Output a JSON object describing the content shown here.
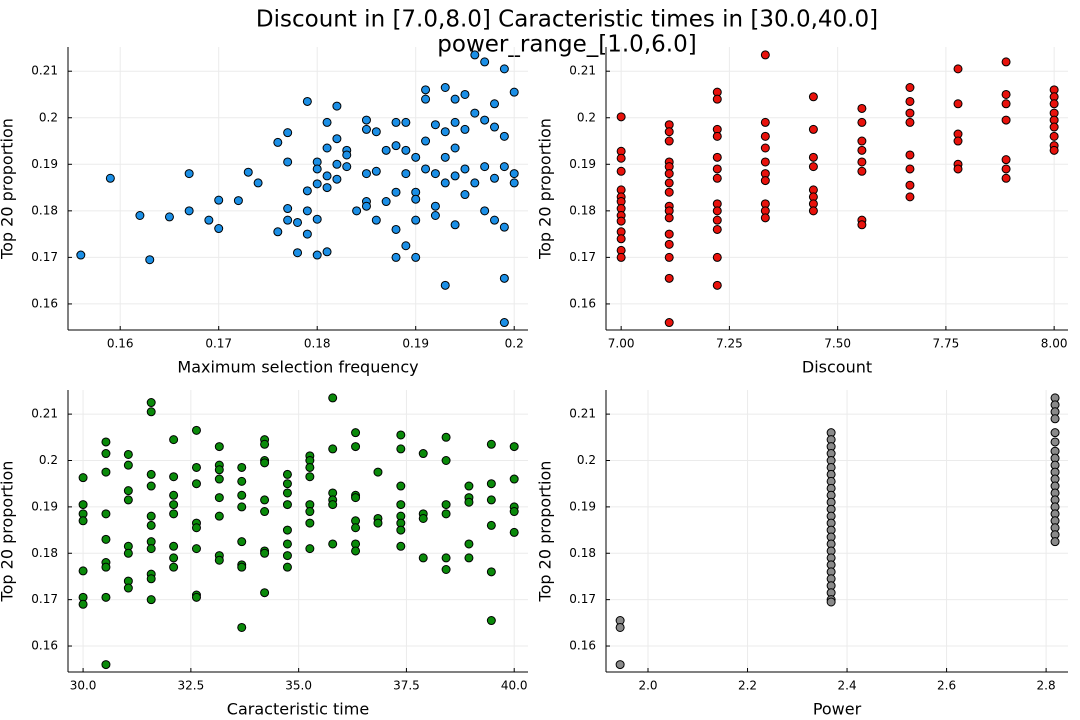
{
  "title": "Discount in [7.0,8.0] Caracteristic times in [30.0,40.0]",
  "subtitle": "power_range_[1.0,6.0]",
  "chart_data": [
    {
      "type": "scatter",
      "xlabel": "Maximum selection frequency",
      "ylabel": "Top 20 proportion",
      "color": "#1b8fe6",
      "grid": true,
      "xlim": [
        0.1547,
        0.2014
      ],
      "ylim": [
        0.1544,
        0.2152
      ],
      "xticks": [
        0.16,
        0.17,
        0.18,
        0.19,
        0.2
      ],
      "yticks": [
        0.16,
        0.17,
        0.18,
        0.19,
        0.2,
        0.21
      ],
      "x": [
        0.156,
        0.159,
        0.162,
        0.163,
        0.165,
        0.167,
        0.167,
        0.169,
        0.17,
        0.17,
        0.172,
        0.173,
        0.174,
        0.176,
        0.176,
        0.177,
        0.177,
        0.177,
        0.177,
        0.178,
        0.178,
        0.179,
        0.179,
        0.179,
        0.179,
        0.18,
        0.18,
        0.18,
        0.18,
        0.18,
        0.181,
        0.181,
        0.181,
        0.181,
        0.181,
        0.182,
        0.182,
        0.182,
        0.182,
        0.183,
        0.183,
        0.183,
        0.184,
        0.185,
        0.185,
        0.185,
        0.185,
        0.185,
        0.186,
        0.186,
        0.186,
        0.187,
        0.187,
        0.188,
        0.188,
        0.188,
        0.188,
        0.188,
        0.189,
        0.189,
        0.189,
        0.189,
        0.19,
        0.19,
        0.19,
        0.19,
        0.19,
        0.191,
        0.191,
        0.191,
        0.191,
        0.192,
        0.192,
        0.192,
        0.192,
        0.193,
        0.193,
        0.193,
        0.193,
        0.193,
        0.194,
        0.194,
        0.194,
        0.194,
        0.194,
        0.195,
        0.195,
        0.195,
        0.195,
        0.196,
        0.196,
        0.196,
        0.197,
        0.197,
        0.197,
        0.197,
        0.198,
        0.198,
        0.198,
        0.198,
        0.199,
        0.199,
        0.199,
        0.199,
        0.199,
        0.199,
        0.2,
        0.2,
        0.2
      ],
      "y": [
        0.1705,
        0.187,
        0.179,
        0.1695,
        0.1787,
        0.18,
        0.188,
        0.178,
        0.1823,
        0.1762,
        0.1822,
        0.1883,
        0.186,
        0.1947,
        0.1755,
        0.1968,
        0.1905,
        0.1805,
        0.178,
        0.171,
        0.1775,
        0.2035,
        0.1843,
        0.18,
        0.175,
        0.1905,
        0.189,
        0.1858,
        0.1782,
        0.1705,
        0.199,
        0.1935,
        0.1875,
        0.185,
        0.1712,
        0.2025,
        0.1955,
        0.19,
        0.1868,
        0.193,
        0.192,
        0.1895,
        0.18,
        0.1995,
        0.1975,
        0.188,
        0.182,
        0.181,
        0.197,
        0.1885,
        0.178,
        0.193,
        0.182,
        0.199,
        0.194,
        0.184,
        0.176,
        0.17,
        0.199,
        0.193,
        0.188,
        0.1725,
        0.1915,
        0.184,
        0.1825,
        0.178,
        0.17,
        0.206,
        0.204,
        0.195,
        0.189,
        0.1985,
        0.188,
        0.181,
        0.179,
        0.2065,
        0.197,
        0.1915,
        0.186,
        0.164,
        0.204,
        0.199,
        0.1935,
        0.1875,
        0.177,
        0.205,
        0.1975,
        0.189,
        0.1835,
        0.2135,
        0.201,
        0.186,
        0.212,
        0.1995,
        0.1895,
        0.18,
        0.203,
        0.198,
        0.187,
        0.178,
        0.2105,
        0.196,
        0.1895,
        0.1765,
        0.1655,
        0.156,
        0.2055,
        0.188,
        0.186
      ]
    },
    {
      "type": "scatter",
      "xlabel": "Discount",
      "ylabel": "Top 20 proportion",
      "color": "#e8120c",
      "grid": true,
      "xlim": [
        6.965,
        8.032
      ],
      "ylim": [
        0.1544,
        0.2152
      ],
      "xticks": [
        {
          "value": 7,
          "label": "7.00"
        },
        7.25,
        {
          "value": 7.5,
          "label": "7.50"
        },
        7.75,
        {
          "value": 8,
          "label": "8.00"
        }
      ],
      "yticks": [
        0.16,
        0.17,
        0.18,
        0.19,
        0.2,
        0.21
      ],
      "x": [
        7,
        7,
        7,
        7,
        7,
        7,
        7,
        7,
        7,
        7,
        7,
        7,
        7,
        7,
        7.111,
        7.111,
        7.111,
        7.111,
        7.111,
        7.111,
        7.111,
        7.111,
        7.111,
        7.111,
        7.111,
        7.111,
        7.111,
        7.111,
        7.111,
        7.111,
        7.222,
        7.222,
        7.222,
        7.222,
        7.222,
        7.222,
        7.222,
        7.222,
        7.222,
        7.222,
        7.222,
        7.222,
        7.222,
        7.333,
        7.333,
        7.333,
        7.333,
        7.333,
        7.333,
        7.333,
        7.333,
        7.333,
        7.333,
        7.444,
        7.444,
        7.444,
        7.444,
        7.444,
        7.444,
        7.444,
        7.444,
        7.556,
        7.556,
        7.556,
        7.556,
        7.556,
        7.556,
        7.556,
        7.556,
        7.667,
        7.667,
        7.667,
        7.667,
        7.667,
        7.667,
        7.667,
        7.667,
        7.778,
        7.778,
        7.778,
        7.778,
        7.778,
        7.778,
        7.889,
        7.889,
        7.889,
        7.889,
        7.889,
        7.889,
        7.889,
        8,
        8,
        8,
        8,
        8,
        8,
        8,
        8,
        8
      ],
      "y": [
        0.2002,
        0.1928,
        0.1913,
        0.1885,
        0.1845,
        0.183,
        0.182,
        0.1805,
        0.179,
        0.1778,
        0.1755,
        0.174,
        0.1715,
        0.17,
        0.1985,
        0.197,
        0.195,
        0.1905,
        0.1895,
        0.188,
        0.186,
        0.184,
        0.181,
        0.18,
        0.1785,
        0.175,
        0.1728,
        0.17,
        0.1655,
        0.156,
        0.2055,
        0.204,
        0.1975,
        0.196,
        0.1915,
        0.189,
        0.187,
        0.1815,
        0.18,
        0.178,
        0.176,
        0.17,
        0.164,
        0.2135,
        0.199,
        0.196,
        0.1935,
        0.1905,
        0.188,
        0.1865,
        0.1815,
        0.18,
        0.1785,
        0.2045,
        0.1975,
        0.1915,
        0.1895,
        0.1845,
        0.183,
        0.1815,
        0.18,
        0.202,
        0.199,
        0.195,
        0.193,
        0.1905,
        0.1885,
        0.178,
        0.177,
        0.2065,
        0.2035,
        0.201,
        0.199,
        0.192,
        0.189,
        0.1855,
        0.183,
        0.2105,
        0.203,
        0.1965,
        0.195,
        0.19,
        0.189,
        0.212,
        0.205,
        0.203,
        0.1995,
        0.191,
        0.189,
        0.187,
        0.206,
        0.2045,
        0.203,
        0.201,
        0.1995,
        0.198,
        0.196,
        0.194,
        0.193
      ]
    },
    {
      "type": "scatter",
      "xlabel": "Caracteristic time",
      "ylabel": "Top 20 proportion",
      "color": "#0a8a0a",
      "grid": true,
      "xlim": [
        29.65,
        40.32
      ],
      "ylim": [
        0.1544,
        0.2152
      ],
      "xticks": [
        {
          "value": 30,
          "label": "30.0"
        },
        32.5,
        {
          "value": 35,
          "label": "35.0"
        },
        37.5,
        {
          "value": 40,
          "label": "40.0"
        }
      ],
      "yticks": [
        0.16,
        0.17,
        0.18,
        0.19,
        0.2,
        0.21
      ],
      "x": [
        30,
        30,
        30,
        30,
        30,
        30,
        30,
        30.53,
        30.53,
        30.53,
        30.53,
        30.53,
        30.53,
        30.53,
        30.53,
        30.53,
        31.05,
        31.05,
        31.05,
        31.05,
        31.05,
        31.05,
        31.05,
        31.05,
        31.58,
        31.58,
        31.58,
        31.58,
        31.58,
        31.58,
        31.58,
        31.58,
        31.58,
        31.58,
        31.58,
        32.1,
        32.1,
        32.1,
        32.1,
        32.1,
        32.1,
        32.1,
        32.1,
        32.63,
        32.63,
        32.63,
        32.63,
        32.63,
        32.63,
        32.63,
        32.63,
        33.16,
        33.16,
        33.16,
        33.16,
        33.16,
        33.16,
        33.16,
        33.16,
        33.68,
        33.68,
        33.68,
        33.68,
        33.68,
        33.68,
        33.68,
        33.68,
        34.21,
        34.21,
        34.21,
        34.21,
        34.21,
        34.21,
        34.21,
        34.21,
        34.21,
        34.74,
        34.74,
        34.74,
        34.74,
        34.74,
        34.74,
        34.74,
        34.74,
        35.26,
        35.26,
        35.26,
        35.26,
        35.26,
        35.26,
        35.26,
        35.26,
        35.79,
        35.79,
        35.79,
        35.79,
        35.79,
        35.79,
        36.32,
        36.32,
        36.32,
        36.32,
        36.32,
        36.32,
        36.32,
        36.32,
        36.84,
        36.84,
        36.84,
        37.37,
        37.37,
        37.37,
        37.37,
        37.37,
        37.37,
        37.37,
        37.37,
        37.89,
        37.89,
        37.89,
        37.89,
        38.42,
        38.42,
        38.42,
        38.42,
        38.42,
        38.42,
        38.95,
        38.95,
        38.95,
        38.95,
        38.95,
        39.47,
        39.47,
        39.47,
        39.47,
        39.47,
        39.47,
        40,
        40,
        40,
        40,
        40
      ],
      "y": [
        0.1963,
        0.1905,
        0.1885,
        0.187,
        0.1762,
        0.1705,
        0.169,
        0.204,
        0.2015,
        0.1975,
        0.1885,
        0.183,
        0.178,
        0.177,
        0.1705,
        0.156,
        0.2013,
        0.199,
        0.1935,
        0.1915,
        0.1815,
        0.18,
        0.174,
        0.1725,
        0.2125,
        0.2105,
        0.197,
        0.1945,
        0.188,
        0.186,
        0.1825,
        0.181,
        0.1755,
        0.1745,
        0.17,
        0.2045,
        0.1965,
        0.1925,
        0.1905,
        0.1885,
        0.1815,
        0.179,
        0.177,
        0.2065,
        0.1985,
        0.195,
        0.1865,
        0.1855,
        0.181,
        0.171,
        0.1705,
        0.203,
        0.199,
        0.198,
        0.196,
        0.192,
        0.188,
        0.1795,
        0.1785,
        0.1985,
        0.1955,
        0.1925,
        0.19,
        0.1825,
        0.1775,
        0.177,
        0.164,
        0.2045,
        0.2035,
        0.2,
        0.1995,
        0.1915,
        0.189,
        0.1805,
        0.18,
        0.1715,
        0.197,
        0.195,
        0.193,
        0.1905,
        0.185,
        0.182,
        0.1795,
        0.177,
        0.201,
        0.2,
        0.1985,
        0.1965,
        0.1905,
        0.189,
        0.1865,
        0.181,
        0.2135,
        0.2025,
        0.193,
        0.1915,
        0.1905,
        0.182,
        0.206,
        0.203,
        0.1925,
        0.192,
        0.187,
        0.1855,
        0.182,
        0.1805,
        0.1975,
        0.1875,
        0.1865,
        0.2055,
        0.2025,
        0.1945,
        0.1905,
        0.188,
        0.1865,
        0.185,
        0.1815,
        0.2015,
        0.1885,
        0.1875,
        0.179,
        0.205,
        0.2,
        0.1905,
        0.1885,
        0.179,
        0.1765,
        0.1945,
        0.192,
        0.191,
        0.182,
        0.179,
        0.2035,
        0.195,
        0.1915,
        0.186,
        0.176,
        0.1655,
        0.203,
        0.196,
        0.19,
        0.189,
        0.1845
      ]
    },
    {
      "type": "scatter",
      "xlabel": "Power",
      "ylabel": "Top 20 proportion",
      "color": "#8a8a8a",
      "grid": true,
      "xlim": [
        1.9156,
        2.844
      ],
      "ylim": [
        0.1544,
        0.2152
      ],
      "xticks": [
        {
          "value": 2,
          "label": "2.0"
        },
        2.2,
        2.4,
        2.6,
        2.8
      ],
      "yticks": [
        0.16,
        0.17,
        0.18,
        0.19,
        0.2,
        0.21
      ],
      "x": [
        1.944,
        1.944,
        1.944,
        2.368,
        2.368,
        2.368,
        2.368,
        2.368,
        2.368,
        2.368,
        2.368,
        2.368,
        2.368,
        2.368,
        2.368,
        2.368,
        2.368,
        2.368,
        2.368,
        2.368,
        2.368,
        2.368,
        2.368,
        2.368,
        2.368,
        2.368,
        2.368,
        2.368,
        2.368,
        2.818,
        2.818,
        2.818,
        2.818,
        2.818,
        2.818,
        2.818,
        2.818,
        2.818,
        2.818,
        2.818,
        2.818,
        2.818,
        2.818,
        2.818,
        2.818,
        2.818,
        2.818,
        2.818,
        2.818
      ],
      "y": [
        0.1655,
        0.164,
        0.156,
        0.206,
        0.2045,
        0.203,
        0.2015,
        0.2,
        0.1985,
        0.197,
        0.1955,
        0.194,
        0.1925,
        0.191,
        0.1895,
        0.188,
        0.1865,
        0.185,
        0.1835,
        0.182,
        0.1805,
        0.179,
        0.1775,
        0.176,
        0.1745,
        0.173,
        0.1715,
        0.17,
        0.1695,
        0.2135,
        0.212,
        0.2105,
        0.209,
        0.206,
        0.204,
        0.202,
        0.2005,
        0.199,
        0.1975,
        0.196,
        0.1945,
        0.193,
        0.1915,
        0.19,
        0.1885,
        0.187,
        0.1855,
        0.184,
        0.1825
      ]
    }
  ]
}
